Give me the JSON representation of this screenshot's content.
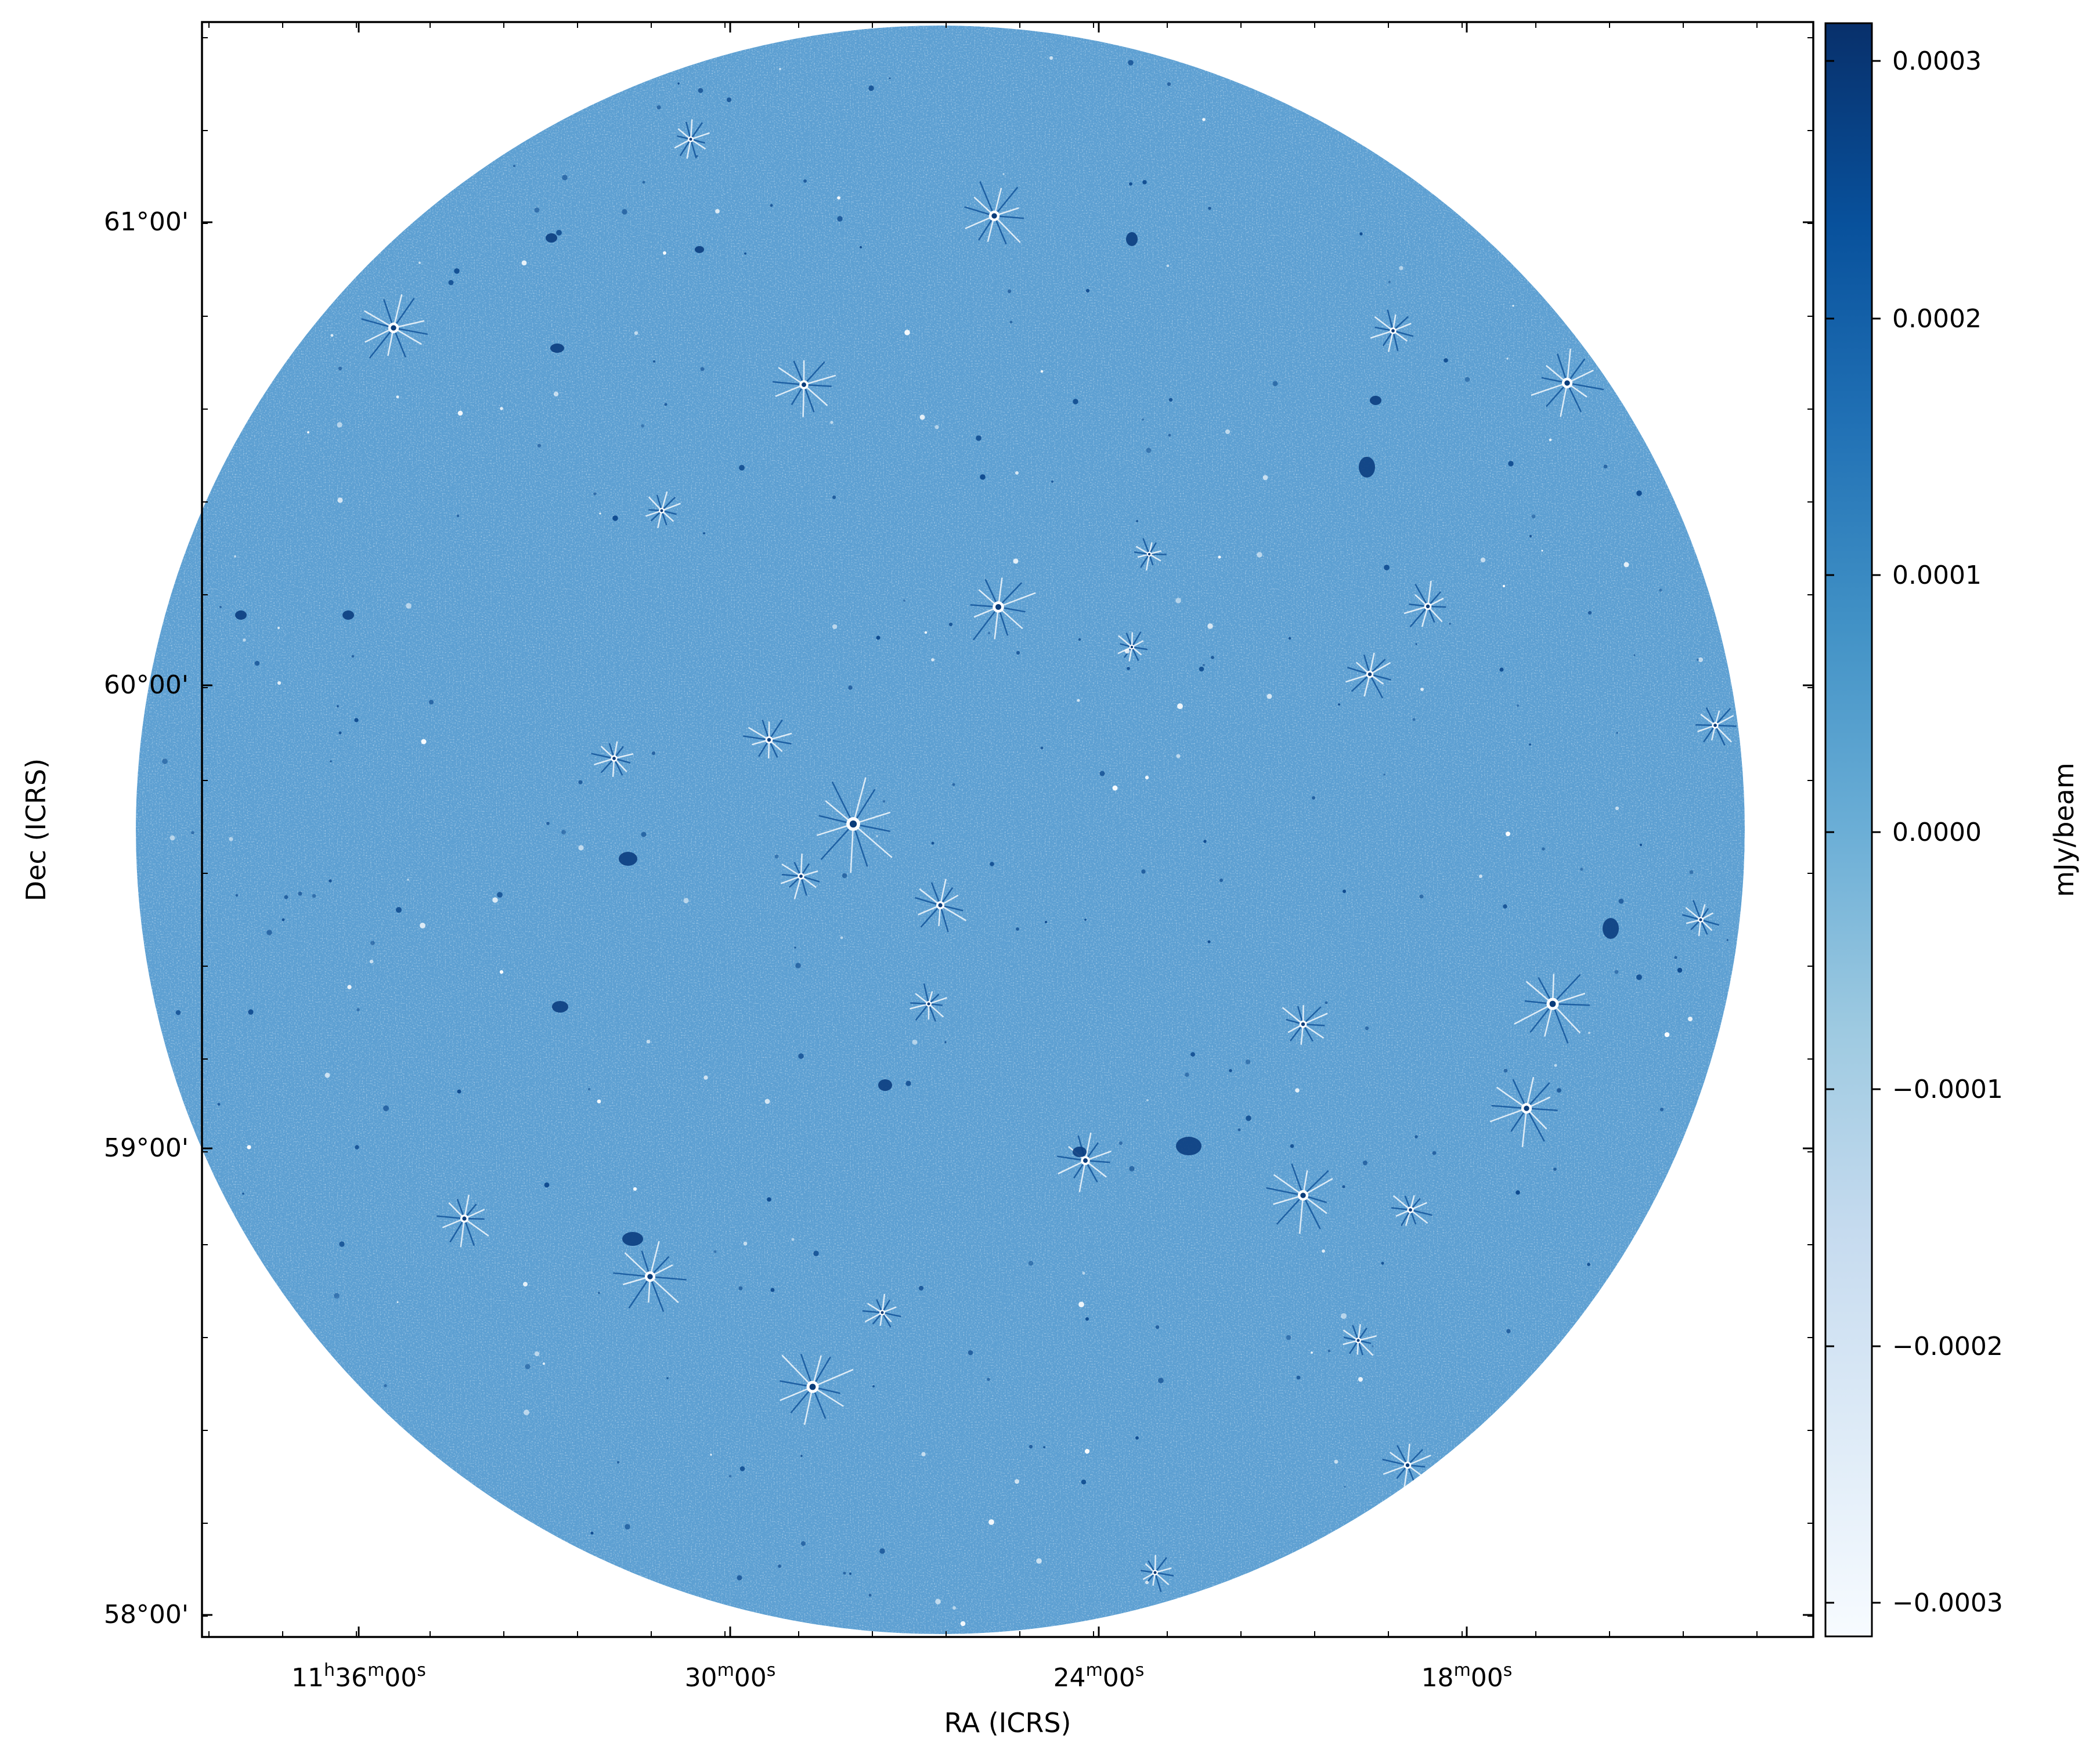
{
  "figure": {
    "xlabel": "RA (ICRS)",
    "ylabel": "Dec (ICRS)",
    "colorbar_label": "mJy/beam",
    "colormap": "Blues",
    "colors": {
      "field_base": "#5d9fd2",
      "field_dark": "#1c5ea3",
      "field_light": "#b9d6ee",
      "cmap_low": "#f7fbff",
      "cmap_high": "#08306b",
      "frame": "#000000"
    }
  },
  "x_ticks": [
    {
      "h": "11",
      "m": "36",
      "s": "00",
      "show_hours": true
    },
    {
      "h": "",
      "m": "30",
      "s": "00",
      "show_hours": false
    },
    {
      "h": "",
      "m": "24",
      "s": "00",
      "show_hours": false
    },
    {
      "h": "",
      "m": "18",
      "s": "00",
      "show_hours": false
    }
  ],
  "y_ticks": [
    "61°00'",
    "60°00'",
    "59°00'",
    "58°00'"
  ],
  "colorbar_ticks": [
    "0.0003",
    "0.0002",
    "0.0001",
    "0.0000",
    "−0.0001",
    "−0.0002",
    "−0.0003"
  ],
  "colorbar_range": [
    -0.00031,
    0.00031
  ]
}
